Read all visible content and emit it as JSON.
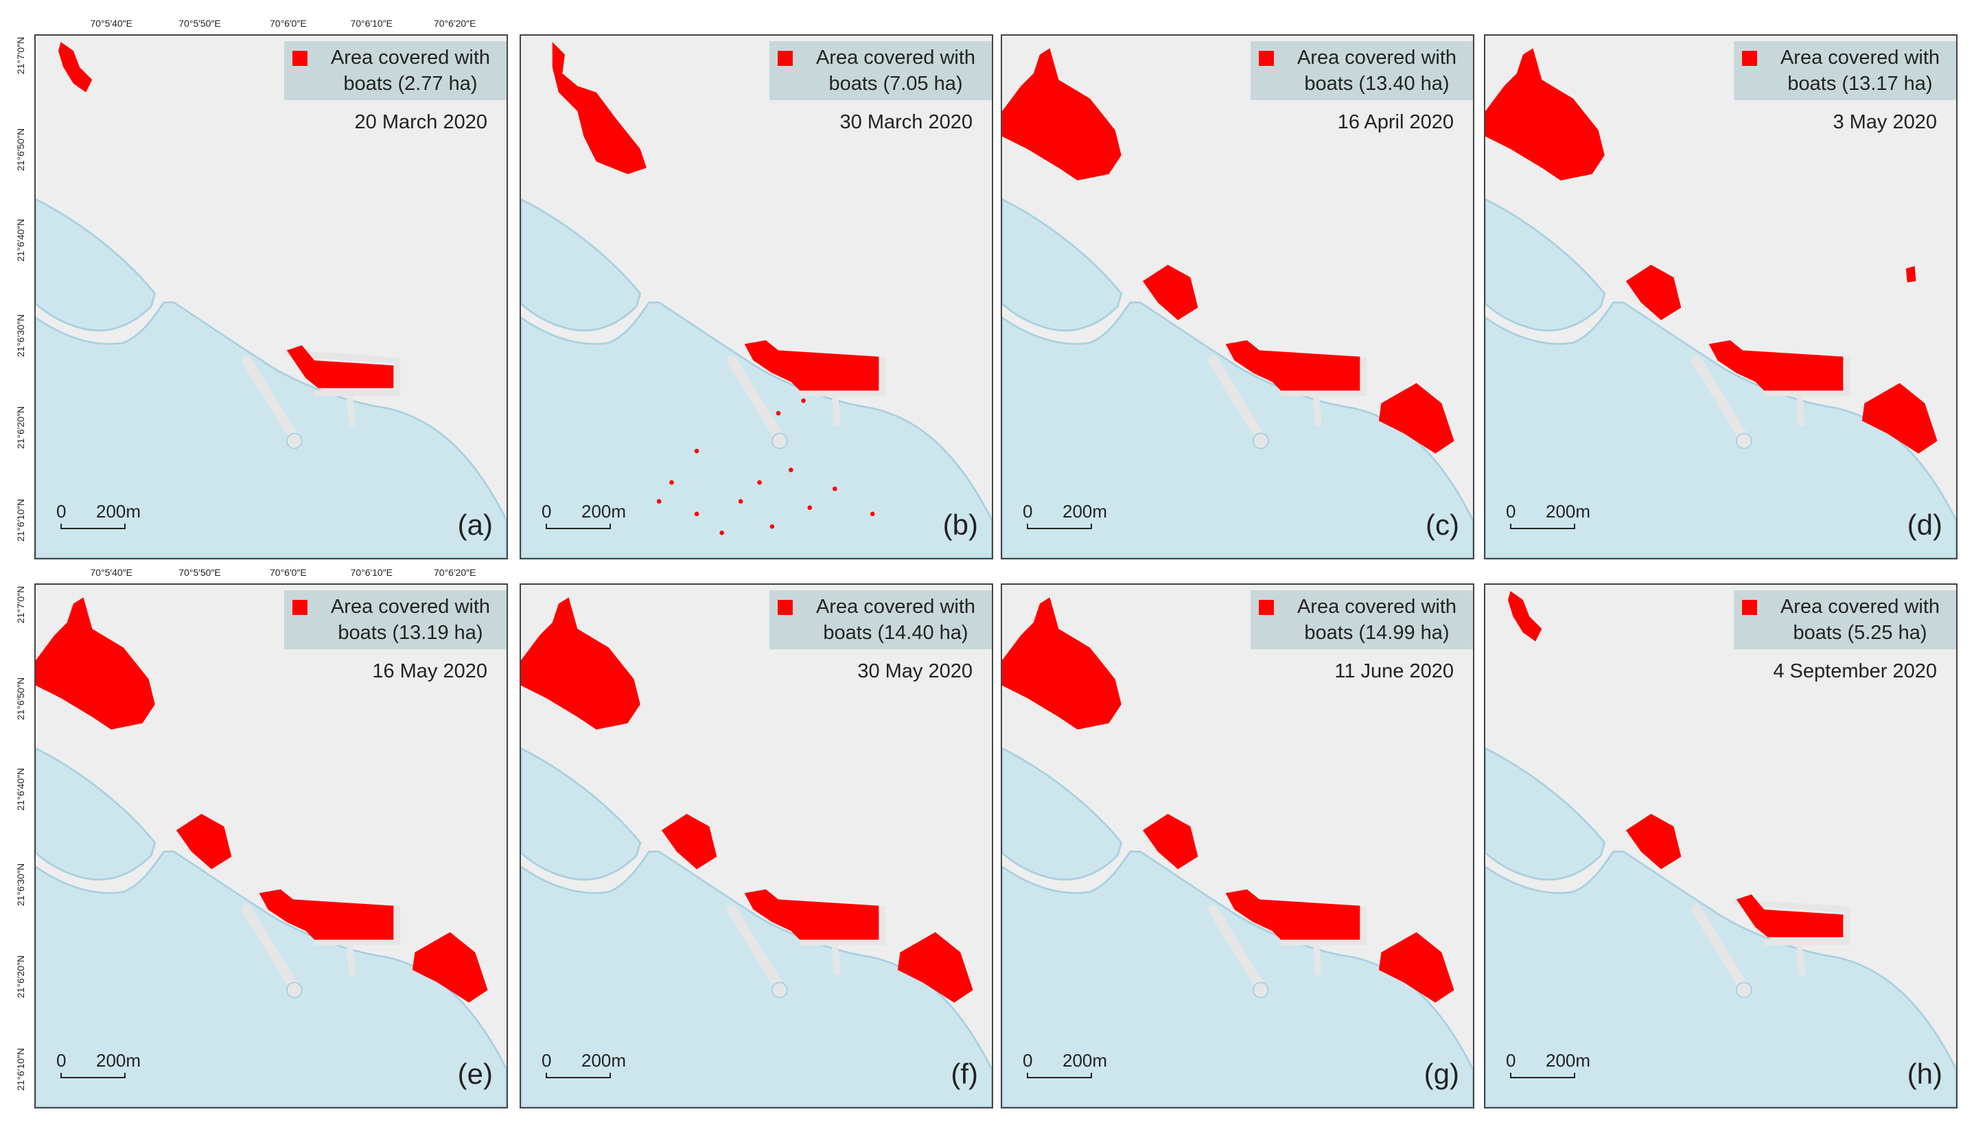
{
  "lon_labels": [
    "70°5′40″E",
    "70°5′50″E",
    "70°6′0″E",
    "70°6′10″E",
    "70°6′20″E"
  ],
  "lat_labels": [
    "21°7′0″N",
    "21°6′50″N",
    "21°6′40″N",
    "21°6′30″N",
    "21°6′20″N",
    "21°6′10″N"
  ],
  "scale_bar": {
    "zero": "0",
    "length": "200m"
  },
  "panels": [
    {
      "legend": "Area covered with boats (2.77 ha)",
      "date": "20 March 2020",
      "label": "(a)"
    },
    {
      "legend": "Area covered with boats (7.05 ha)",
      "date": "30 March 2020",
      "label": "(b)"
    },
    {
      "legend": "Area covered with boats (13.40 ha)",
      "date": "16 April 2020",
      "label": "(c)"
    },
    {
      "legend": "Area covered with boats (13.17 ha)",
      "date": "3 May 2020",
      "label": "(d)"
    },
    {
      "legend": "Area covered with boats (13.19 ha)",
      "date": "16 May 2020",
      "label": "(e)"
    },
    {
      "legend": "Area covered with boats (14.40 ha)",
      "date": "30 May 2020",
      "label": "(f)"
    },
    {
      "legend": "Area covered with boats (14.99 ha)",
      "date": "11 June 2020",
      "label": "(g)"
    },
    {
      "legend": "Area covered with boats (5.25 ha)",
      "date": "4 September 2020",
      "label": "(h)"
    }
  ]
}
